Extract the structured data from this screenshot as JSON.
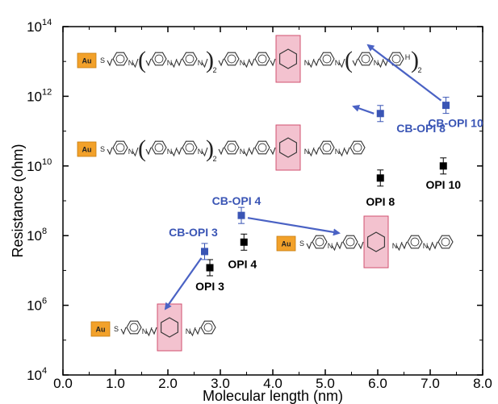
{
  "chart_data": {
    "type": "scatter",
    "xlabel": "Molecular length (nm)",
    "ylabel": "Resistance (ohm)",
    "xlim": [
      0.0,
      8.0
    ],
    "ylim_log10": [
      4,
      14
    ],
    "y_scale": "log",
    "x_tick_labels": [
      "0.0",
      "1.0",
      "2.0",
      "3.0",
      "4.0",
      "5.0",
      "6.0",
      "7.0",
      "8.0"
    ],
    "y_tick_labels": [
      {
        "base": "10",
        "exp": "4"
      },
      {
        "base": "10",
        "exp": "6"
      },
      {
        "base": "10",
        "exp": "8"
      },
      {
        "base": "10",
        "exp": "10"
      },
      {
        "base": "10",
        "exp": "12"
      },
      {
        "base": "10",
        "exp": "14"
      }
    ],
    "series": [
      {
        "color": "#000000",
        "points": [
          {
            "label": "OPI 3",
            "x": 2.8,
            "y": 12000000.0
          },
          {
            "label": "OPI 4",
            "x": 3.45,
            "y": 65000000.0
          },
          {
            "label": "OPI 8",
            "x": 6.05,
            "y": 4500000000.0
          },
          {
            "label": "OPI 10",
            "x": 7.25,
            "y": 10000000000.0
          }
        ]
      },
      {
        "color": "#3a55b5",
        "points": [
          {
            "label": "CB-OPI 3",
            "x": 2.7,
            "y": 35000000.0
          },
          {
            "label": "CB-OPI 4",
            "x": 3.4,
            "y": 380000000.0
          },
          {
            "label": "CB-OPI 8",
            "x": 6.05,
            "y": 320000000000.0
          },
          {
            "label": "CB-OPI 10",
            "x": 7.3,
            "y": 550000000000.0
          }
        ]
      }
    ],
    "structure_labels": {
      "gold": "Au",
      "sulfur": "S",
      "hydrogen": "H",
      "subscript_2": "2"
    }
  },
  "colors": {
    "black_series": "#000000",
    "blue_series": "#3a55b5",
    "arrow": "#4a62c4",
    "au_fill": "#f2a12a",
    "cyclohexane_box": "#f3c2cf"
  }
}
